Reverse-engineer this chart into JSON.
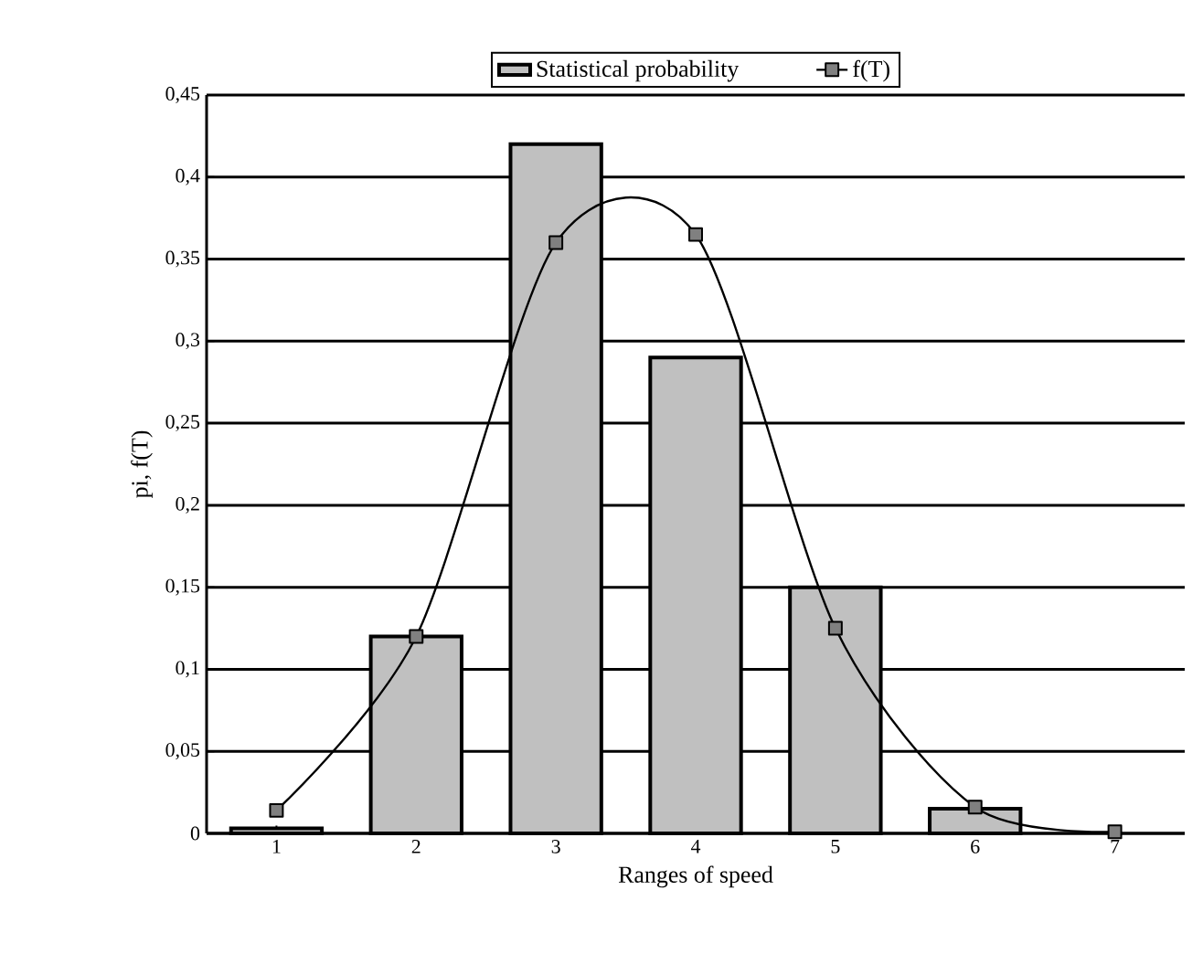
{
  "chart_data": {
    "type": "bar",
    "xlabel": "Ranges of speed",
    "ylabel": "pi, f(T)",
    "categories": [
      "1",
      "2",
      "3",
      "4",
      "5",
      "6",
      "7"
    ],
    "series": [
      {
        "name": "Statistical probability",
        "color": "#c0c0c0",
        "values": [
          0.003,
          0.12,
          0.42,
          0.29,
          0.15,
          0.015,
          null
        ]
      },
      {
        "name": "f(T)",
        "type": "line",
        "color": "#000000",
        "marker": "square",
        "values": [
          0.014,
          0.12,
          0.36,
          0.365,
          0.125,
          0.016,
          0.001
        ]
      }
    ],
    "ylim": [
      0,
      0.45
    ],
    "yticks": [
      {
        "value": 0,
        "label": "0"
      },
      {
        "value": 0.05,
        "label": "0,05"
      },
      {
        "value": 0.1,
        "label": "0,1"
      },
      {
        "value": 0.15,
        "label": "0,15"
      },
      {
        "value": 0.2,
        "label": "0,2"
      },
      {
        "value": 0.25,
        "label": "0,25"
      },
      {
        "value": 0.3,
        "label": "0,3"
      },
      {
        "value": 0.35,
        "label": "0,35"
      },
      {
        "value": 0.4,
        "label": "0,4"
      },
      {
        "value": 0.45,
        "label": "0,45"
      }
    ],
    "grid": "y",
    "legend": "top"
  }
}
